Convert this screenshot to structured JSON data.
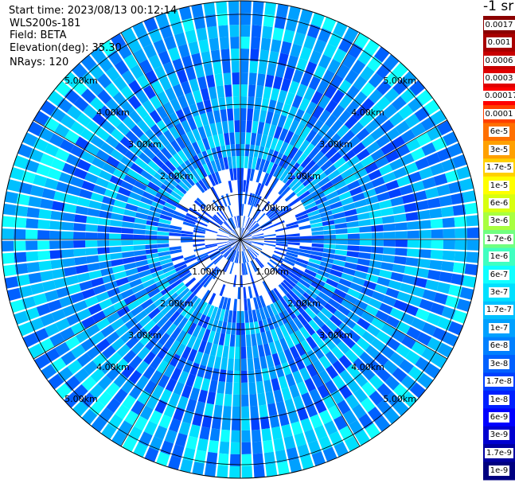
{
  "header": {
    "start_time": "Start time: 2023/08/13 00:12:14",
    "instrument": "WLS200s-181",
    "field": "Field: BETA",
    "elevation": "Elevation(deg): 35.30",
    "nrays": "NRays: 120"
  },
  "colorbar": {
    "unit_label": "-1 sr",
    "ticks": [
      "0.0017",
      "0.001",
      "0.0006",
      "0.0003",
      "0.00017",
      "0.0001",
      "6e-5",
      "3e-5",
      "1.7e-5",
      "1e-5",
      "6e-6",
      "3e-6",
      "1.7e-6",
      "1e-6",
      "6e-7",
      "3e-7",
      "1.7e-7",
      "1e-7",
      "6e-8",
      "3e-8",
      "1.7e-8",
      "1e-8",
      "6e-9",
      "3e-9",
      "1.7e-9",
      "1e-9"
    ],
    "colors": [
      "#8b0000",
      "#a80000",
      "#c80000",
      "#e00000",
      "#ff0000",
      "#ff4000",
      "#ff7000",
      "#ffa000",
      "#ffd000",
      "#ffff00",
      "#d8ff10",
      "#a8ff40",
      "#70ff80",
      "#40ffc0",
      "#10ffff",
      "#00e0ff",
      "#00c0ff",
      "#00a0ff",
      "#0080ff",
      "#0060ff",
      "#0040ff",
      "#0020ff",
      "#0000ff",
      "#0000d0",
      "#0000a0",
      "#000080"
    ]
  },
  "chart_data": {
    "type": "heatmap",
    "subtype": "polar-ppi",
    "field": "BETA",
    "nrays": 120,
    "elevation_deg": 35.3,
    "range_rings_km": [
      1,
      2,
      3,
      4,
      5
    ],
    "range_ring_labels": [
      "1.00km",
      "2.00km",
      "3.00km",
      "4.00km",
      "5.00km"
    ],
    "max_range_km": 5.3,
    "spokes_deg": [
      0,
      30,
      60,
      90,
      120,
      150,
      180,
      210,
      240,
      270,
      300,
      330
    ],
    "color_scale": "log",
    "value_range": [
      1e-09,
      0.0017
    ],
    "dominant_values": [
      "1e-8",
      "1.7e-8",
      "3e-8"
    ]
  }
}
